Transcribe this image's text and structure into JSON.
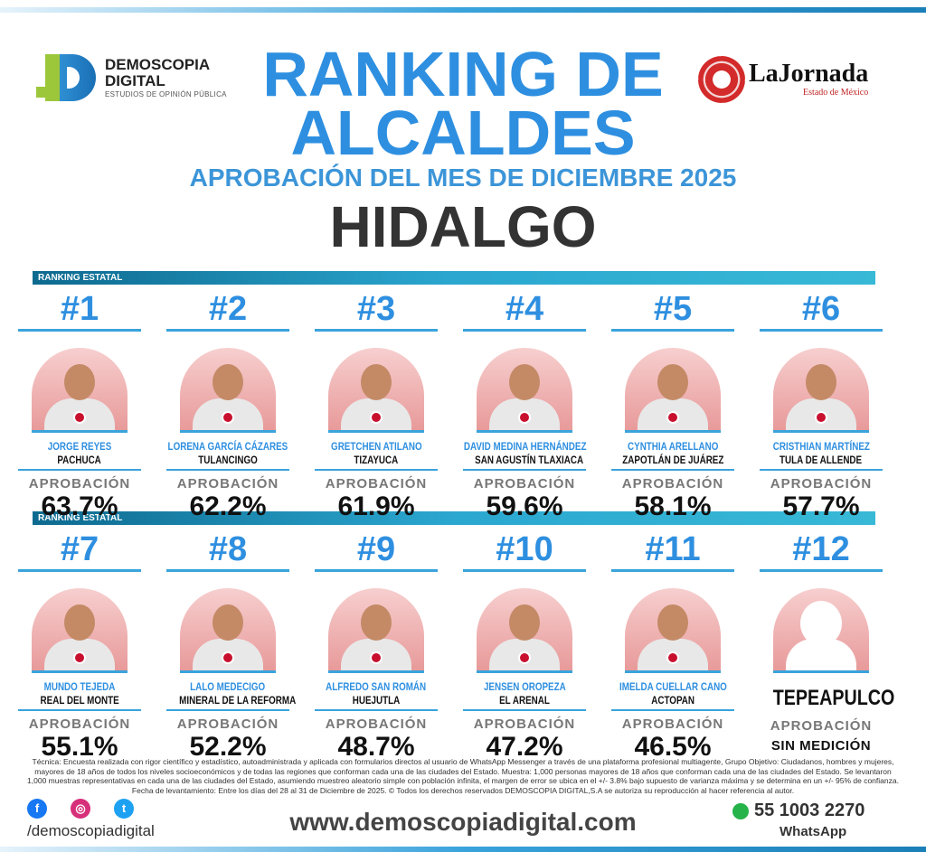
{
  "header": {
    "brand_name": "DEMOSCOPIA DIGITAL",
    "brand_line1": "DEMOSCOPIA",
    "brand_line2": "DIGITAL",
    "brand_tag": "ESTUDIOS DE OPINIÓN PÚBLICA",
    "partner": "LaJornada",
    "partner_sub": "Estado de México",
    "title_line1": "RANKING DE",
    "title_line2": "ALCALDES",
    "subtitle": "APROBACIÓN DEL MES DE DICIEMBRE 2025",
    "state": "HIDALGO"
  },
  "section_label": "RANKING ESTATAL",
  "approval_label": "APROBACIÓN",
  "colors": {
    "accent": "#2e8fe0",
    "bar": "#2ba7d0",
    "photo_bg": "#f2b8b8"
  },
  "rows": [
    [
      {
        "rank": "#1",
        "name": "JORGE REYES",
        "city": "PACHUCA",
        "approval": "63.7%"
      },
      {
        "rank": "#2",
        "name": "LORENA GARCÍA CÁZARES",
        "city": "TULANCINGO",
        "approval": "62.2%"
      },
      {
        "rank": "#3",
        "name": "GRETCHEN ATILANO",
        "city": "TIZAYUCA",
        "approval": "61.9%"
      },
      {
        "rank": "#4",
        "name": "DAVID MEDINA HERNÁNDEZ",
        "city": "SAN AGUSTÍN TLAXIACA",
        "approval": "59.6%"
      },
      {
        "rank": "#5",
        "name": "CYNTHIA ARELLANO",
        "city": "ZAPOTLÁN DE JUÁREZ",
        "approval": "58.1%"
      },
      {
        "rank": "#6",
        "name": "CRISTHIAN MARTÍNEZ",
        "city": "TULA DE ALLENDE",
        "approval": "57.7%"
      }
    ],
    [
      {
        "rank": "#7",
        "name": "MUNDO TEJEDA",
        "city": "REAL DEL MONTE",
        "approval": "55.1%"
      },
      {
        "rank": "#8",
        "name": "LALO MEDECIGO",
        "city": "MINERAL DE LA REFORMA",
        "approval": "52.2%"
      },
      {
        "rank": "#9",
        "name": "ALFREDO SAN ROMÁN",
        "city": "HUEJUTLA",
        "approval": "48.7%"
      },
      {
        "rank": "#10",
        "name": "JENSEN OROPEZA",
        "city": "EL ARENAL",
        "approval": "47.2%"
      },
      {
        "rank": "#11",
        "name": "IMELDA CUELLAR CANO",
        "city": "ACTOPAN",
        "approval": "46.5%"
      },
      {
        "rank": "#12",
        "name": "",
        "city": "TEPEAPULCO",
        "approval": "SIN MEDICIÓN"
      }
    ]
  ],
  "footer": {
    "methodology": "Técnica: Encuesta realizada con rigor científico y estadístico, autoadministrada y aplicada con formularios directos al usuario de WhatsApp Messenger a través de una plataforma profesional multiagente, Grupo Objetivo: Ciudadanos, hombres y mujeres, mayores de 18 años de todos los niveles socioeconómicos y de todas las regiones que conforman cada una de las ciudades del Estado. Muestra: 1,000 personas mayores de 18 años que conforman cada una de las ciudades del Estado. Se levantaron 1,000 muestras representativas en cada una de las ciudades del Estado, asumiendo muestreo aleatorio simple con población infinita, el margen de error se ubica en el +/- 3.8% bajo supuesto de varianza máxima y se determina en un +/- 95% de confianza. Fecha de levantamiento: Entre los días del 28 al 31 de Diciembre de 2025. © Todos los derechos reservados DEMOSCOPIA DIGITAL,S.A se autoriza su reproducción al hacer referencia al autor.",
    "handle": "/demoscopiadigital",
    "website": "www.demoscopiadigital.com",
    "phone": "55 1003 2270",
    "whatsapp_label": "WhatsApp"
  }
}
